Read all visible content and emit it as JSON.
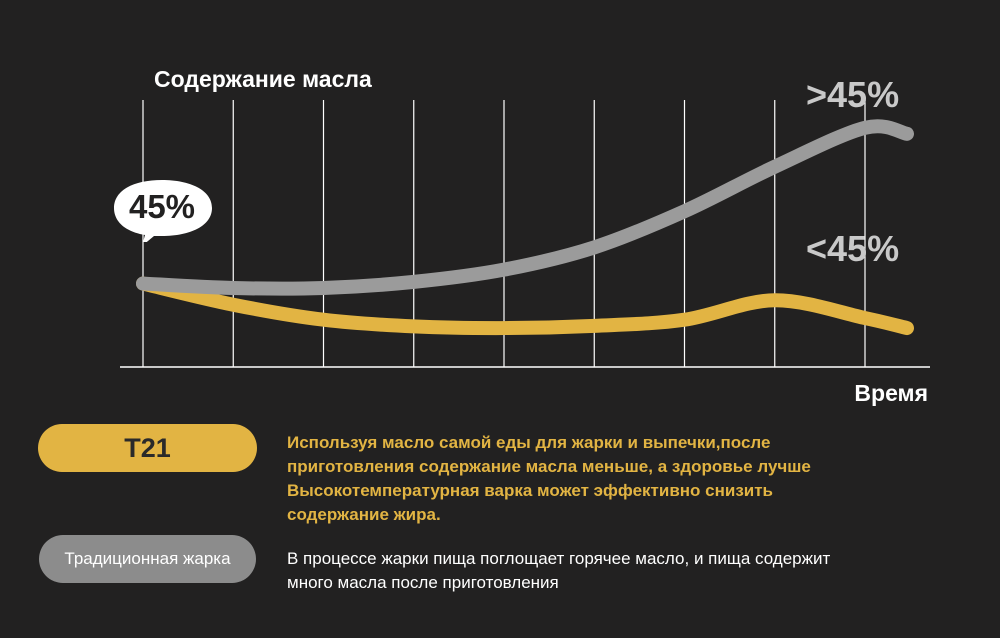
{
  "chart_data": {
    "type": "line",
    "ylabel": "Содержание масла",
    "xlabel": "Время",
    "grid": true,
    "x": [
      0,
      1,
      2,
      3,
      4,
      5,
      6,
      7,
      8
    ],
    "series": [
      {
        "values": [
          45,
          44.2,
          44.2,
          45.3,
          47.5,
          51.5,
          58,
          66,
          73
        ],
        "color": "#9b9b9b",
        "end_label": ">45%"
      },
      {
        "values": [
          45,
          41.2,
          38.5,
          37.3,
          37,
          37.4,
          38.5,
          42,
          38.8
        ],
        "color": "#e2b443",
        "end_label": "<45%"
      }
    ],
    "start_label": "45%"
  },
  "legend": {
    "t21": {
      "label": "T21",
      "color": "#e2b443",
      "text_lines": [
        "Используя масло самой еды для жарки и выпечки,после",
        "приготовления содержание масла меньше, а здоровье лучше",
        "Высокотемпературная варка может эффективно снизить",
        "содержание жира."
      ]
    },
    "traditional": {
      "label": "Традиционная жарка",
      "color": "#8c8c8c",
      "text_lines": [
        "В процессе жарки пища поглощает горячее масло, и пища содержит",
        "много масла после приготовления"
      ]
    }
  },
  "colors": {
    "background": "#222121",
    "gold": "#e2b443",
    "gray": "#9b9b9b"
  }
}
